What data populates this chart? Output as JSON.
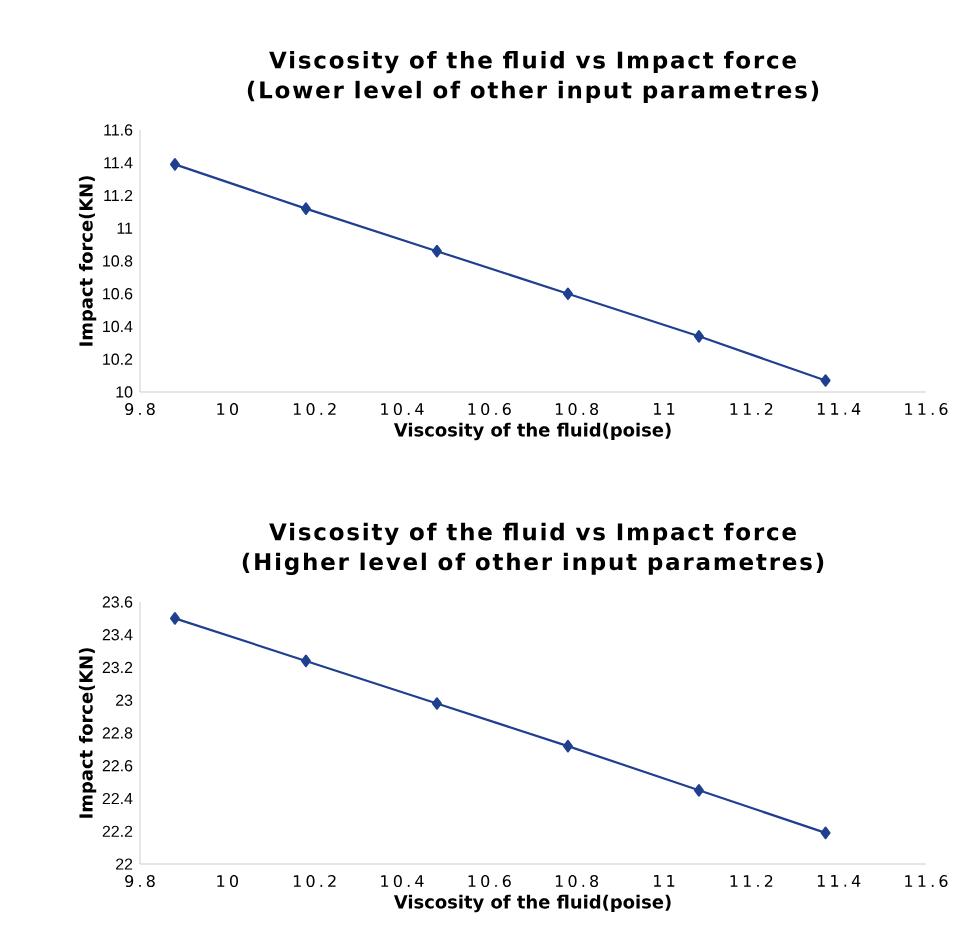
{
  "chart_data": [
    {
      "type": "line",
      "title": "Viscosity of the fluid vs Impact force",
      "subtitle": "(Lower level of other input parametres)",
      "xlabel": "Viscosity of the fluid(poise)",
      "ylabel": "Impact force(KN)",
      "series": [
        {
          "color": "#1f3f8f",
          "x": [
            9.88,
            10.18,
            10.48,
            10.78,
            11.08,
            11.37
          ],
          "values": [
            11.39,
            11.12,
            10.86,
            10.6,
            10.34,
            10.07
          ]
        }
      ],
      "xlim": [
        9.8,
        11.6
      ],
      "xticks": [
        9.8,
        10,
        10.2,
        10.4,
        10.6,
        10.8,
        11,
        11.2,
        11.4,
        11.6
      ],
      "ylim": [
        10,
        11.6
      ],
      "yticks": [
        10,
        10.2,
        10.4,
        10.6,
        10.8,
        11,
        11.2,
        11.4,
        11.6
      ],
      "marker": "diamond",
      "line_style": "solid",
      "grid": false
    },
    {
      "type": "line",
      "title": "Viscosity of the fluid vs Impact force",
      "subtitle": "(Higher level of other input parametres)",
      "xlabel": "Viscosity of the fluid(poise)",
      "ylabel": "Impact force(KN)",
      "series": [
        {
          "color": "#1f3f8f",
          "x": [
            9.88,
            10.18,
            10.48,
            10.78,
            11.08,
            11.37
          ],
          "values": [
            23.5,
            23.24,
            22.98,
            22.72,
            22.45,
            22.19
          ]
        }
      ],
      "xlim": [
        9.8,
        11.6
      ],
      "xticks": [
        9.8,
        10,
        10.2,
        10.4,
        10.6,
        10.8,
        11,
        11.2,
        11.4,
        11.6
      ],
      "ylim": [
        22,
        23.6
      ],
      "yticks": [
        22,
        22.2,
        22.4,
        22.6,
        22.8,
        23,
        23.2,
        23.4,
        23.6
      ],
      "marker": "diamond",
      "line_style": "solid",
      "grid": false
    }
  ]
}
